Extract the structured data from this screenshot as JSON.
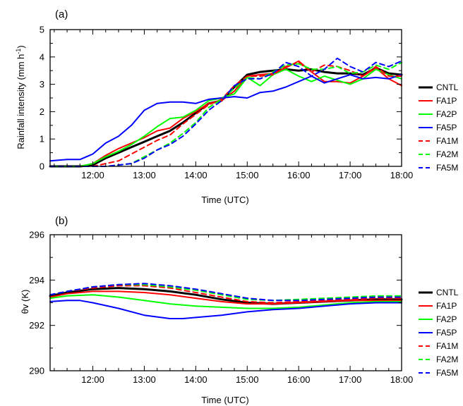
{
  "chart_data": [
    {
      "type": "line",
      "panel_label": "(a)",
      "xlabel": "Time (UTC)",
      "ylabel": "Rainfall intensity (mm h",
      "ylabel_sup": "-1",
      "ylabel_close": ")",
      "xlim": [
        11.17,
        18.0
      ],
      "ylim": [
        0,
        5
      ],
      "xticks": [
        12,
        13,
        14,
        15,
        16,
        17,
        18
      ],
      "xticklabels": [
        "12:00",
        "13:00",
        "14:00",
        "15:00",
        "16:00",
        "17:00",
        "18:00"
      ],
      "yticks": [
        0,
        1,
        2,
        3,
        4,
        5
      ],
      "yticklabels": [
        "0",
        "1",
        "2",
        "3",
        "4",
        "5"
      ],
      "grid": false,
      "legend_position": "right",
      "series": [
        {
          "name": "CNTL",
          "color": "#000000",
          "dash": "solid",
          "width": 3,
          "x": [
            11.17,
            11.5,
            11.75,
            12.0,
            12.25,
            12.5,
            12.75,
            13.0,
            13.25,
            13.5,
            13.75,
            14.0,
            14.25,
            14.5,
            14.75,
            15.0,
            15.25,
            15.5,
            15.75,
            16.0,
            16.25,
            16.5,
            16.75,
            17.0,
            17.25,
            17.5,
            17.75,
            18.0
          ],
          "y": [
            0.0,
            0.0,
            0.0,
            0.05,
            0.3,
            0.5,
            0.7,
            0.9,
            1.1,
            1.3,
            1.6,
            1.95,
            2.3,
            2.4,
            2.9,
            3.35,
            3.45,
            3.5,
            3.55,
            3.5,
            3.55,
            3.45,
            3.4,
            3.4,
            3.35,
            3.6,
            3.4,
            3.35
          ]
        },
        {
          "name": "FA1P",
          "color": "#ff0000",
          "dash": "solid",
          "width": 2,
          "x": [
            11.17,
            11.5,
            11.75,
            12.0,
            12.25,
            12.5,
            12.75,
            13.0,
            13.25,
            13.5,
            13.75,
            14.0,
            14.25,
            14.5,
            14.75,
            15.0,
            15.25,
            15.5,
            15.75,
            16.0,
            16.25,
            16.5,
            16.75,
            17.0,
            17.25,
            17.5,
            17.75,
            18.0
          ],
          "y": [
            0.0,
            0.0,
            0.0,
            0.1,
            0.4,
            0.65,
            0.85,
            1.05,
            1.3,
            1.4,
            1.75,
            2.0,
            2.3,
            2.4,
            2.75,
            3.3,
            3.35,
            3.4,
            3.6,
            3.85,
            3.45,
            3.1,
            3.1,
            3.05,
            3.3,
            3.6,
            3.2,
            2.95
          ]
        },
        {
          "name": "FA2P",
          "color": "#00ff00",
          "dash": "solid",
          "width": 2,
          "x": [
            11.17,
            11.5,
            11.75,
            12.0,
            12.25,
            12.5,
            12.75,
            13.0,
            13.25,
            13.5,
            13.75,
            14.0,
            14.25,
            14.5,
            14.75,
            15.0,
            15.25,
            15.5,
            15.75,
            16.0,
            16.25,
            16.5,
            16.75,
            17.0,
            17.25,
            17.5,
            17.75,
            18.0
          ],
          "y": [
            0.0,
            0.0,
            0.0,
            0.1,
            0.35,
            0.55,
            0.8,
            1.1,
            1.45,
            1.75,
            1.8,
            2.05,
            2.4,
            2.5,
            2.65,
            3.25,
            2.95,
            3.35,
            3.55,
            3.3,
            3.1,
            3.3,
            3.15,
            3.0,
            3.2,
            3.55,
            3.35,
            3.2
          ]
        },
        {
          "name": "FA5P",
          "color": "#0000ff",
          "dash": "solid",
          "width": 2,
          "x": [
            11.17,
            11.5,
            11.75,
            12.0,
            12.25,
            12.5,
            12.75,
            13.0,
            13.25,
            13.5,
            13.75,
            14.0,
            14.25,
            14.5,
            14.75,
            15.0,
            15.25,
            15.5,
            15.75,
            16.0,
            16.25,
            16.5,
            16.75,
            17.0,
            17.25,
            17.5,
            17.75,
            18.0
          ],
          "y": [
            0.2,
            0.25,
            0.25,
            0.45,
            0.85,
            1.1,
            1.5,
            2.05,
            2.3,
            2.35,
            2.35,
            2.3,
            2.45,
            2.5,
            2.55,
            2.5,
            2.7,
            2.75,
            2.9,
            3.1,
            3.3,
            3.05,
            3.2,
            3.35,
            3.2,
            3.25,
            3.2,
            3.35
          ]
        },
        {
          "name": "FA1M",
          "color": "#ff0000",
          "dash": "dashed",
          "width": 2,
          "x": [
            11.17,
            11.5,
            11.75,
            12.0,
            12.25,
            12.5,
            12.75,
            13.0,
            13.25,
            13.5,
            13.75,
            14.0,
            14.25,
            14.5,
            14.75,
            15.0,
            15.25,
            15.5,
            15.75,
            16.0,
            16.25,
            16.5,
            16.75,
            17.0,
            17.25,
            17.5,
            17.75,
            18.0
          ],
          "y": [
            0.0,
            0.0,
            0.0,
            0.0,
            0.1,
            0.2,
            0.45,
            0.7,
            0.95,
            1.15,
            1.55,
            1.9,
            2.25,
            2.45,
            2.95,
            3.3,
            3.3,
            3.35,
            3.65,
            3.8,
            3.45,
            3.7,
            3.65,
            3.5,
            3.3,
            3.65,
            3.3,
            3.3
          ]
        },
        {
          "name": "FA2M",
          "color": "#00ff00",
          "dash": "dashed",
          "width": 2,
          "x": [
            11.17,
            11.5,
            11.75,
            12.0,
            12.25,
            12.5,
            12.75,
            13.0,
            13.25,
            13.5,
            13.75,
            14.0,
            14.25,
            14.5,
            14.75,
            15.0,
            15.25,
            15.5,
            15.75,
            16.0,
            16.25,
            16.5,
            16.75,
            17.0,
            17.25,
            17.5,
            17.75,
            18.0
          ],
          "y": [
            0.0,
            0.0,
            0.0,
            0.0,
            0.0,
            0.05,
            0.1,
            0.35,
            0.6,
            0.85,
            1.2,
            1.6,
            2.15,
            2.45,
            2.85,
            3.25,
            3.2,
            3.45,
            3.7,
            3.75,
            3.55,
            3.55,
            3.65,
            3.4,
            3.45,
            3.7,
            3.55,
            3.8
          ]
        },
        {
          "name": "FA5M",
          "color": "#0000ff",
          "dash": "dashed",
          "width": 2,
          "x": [
            11.17,
            11.5,
            11.75,
            12.0,
            12.25,
            12.5,
            12.75,
            13.0,
            13.25,
            13.5,
            13.75,
            14.0,
            14.25,
            14.5,
            14.75,
            15.0,
            15.25,
            15.5,
            15.75,
            16.0,
            16.25,
            16.5,
            16.75,
            17.0,
            17.25,
            17.5,
            17.75,
            18.0
          ],
          "y": [
            0.0,
            0.0,
            0.0,
            0.0,
            0.0,
            0.05,
            0.1,
            0.3,
            0.6,
            0.8,
            1.1,
            1.55,
            2.05,
            2.4,
            2.95,
            3.2,
            3.2,
            3.4,
            3.8,
            3.65,
            3.3,
            3.55,
            3.95,
            3.65,
            3.45,
            3.8,
            3.65,
            3.85
          ]
        }
      ]
    },
    {
      "type": "line",
      "panel_label": "(b)",
      "xlabel": "Time (UTC)",
      "ylabel": "θv (K)",
      "xlim": [
        11.17,
        18.0
      ],
      "ylim": [
        290,
        296
      ],
      "xticks": [
        12,
        13,
        14,
        15,
        16,
        17,
        18
      ],
      "xticklabels": [
        "12:00",
        "13:00",
        "14:00",
        "15:00",
        "16:00",
        "17:00",
        "18:00"
      ],
      "yticks": [
        290,
        292,
        294,
        296
      ],
      "yticklabels": [
        "290",
        "292",
        "294",
        "296"
      ],
      "grid": false,
      "legend_position": "right",
      "series": [
        {
          "name": "CNTL",
          "color": "#000000",
          "dash": "solid",
          "width": 3,
          "x": [
            11.17,
            11.5,
            12.0,
            12.5,
            13.0,
            13.5,
            14.0,
            14.5,
            15.0,
            15.5,
            16.0,
            16.5,
            17.0,
            17.5,
            18.0
          ],
          "y": [
            293.3,
            293.45,
            293.6,
            293.65,
            293.6,
            293.5,
            293.35,
            293.15,
            293.0,
            292.95,
            293.0,
            293.05,
            293.1,
            293.15,
            293.15
          ]
        },
        {
          "name": "FA1P",
          "color": "#ff0000",
          "dash": "solid",
          "width": 2,
          "x": [
            11.17,
            11.5,
            12.0,
            12.5,
            13.0,
            13.5,
            14.0,
            14.5,
            15.0,
            15.5,
            16.0,
            16.5,
            17.0,
            17.5,
            18.0
          ],
          "y": [
            293.25,
            293.4,
            293.5,
            293.5,
            293.45,
            293.35,
            293.2,
            293.05,
            292.95,
            292.95,
            293.0,
            293.05,
            293.1,
            293.1,
            293.1
          ]
        },
        {
          "name": "FA2P",
          "color": "#00ff00",
          "dash": "solid",
          "width": 2,
          "x": [
            11.17,
            11.5,
            12.0,
            12.5,
            13.0,
            13.5,
            14.0,
            14.5,
            15.0,
            15.5,
            16.0,
            16.5,
            17.0,
            17.5,
            18.0
          ],
          "y": [
            293.2,
            293.3,
            293.35,
            293.25,
            293.1,
            292.95,
            292.85,
            292.8,
            292.75,
            292.75,
            292.8,
            292.9,
            293.0,
            293.05,
            293.05
          ]
        },
        {
          "name": "FA5P",
          "color": "#0000ff",
          "dash": "solid",
          "width": 2,
          "x": [
            11.17,
            11.5,
            11.75,
            12.0,
            12.5,
            13.0,
            13.5,
            13.75,
            14.0,
            14.5,
            15.0,
            15.5,
            16.0,
            16.5,
            17.0,
            17.5,
            18.0
          ],
          "y": [
            293.05,
            293.1,
            293.1,
            293.0,
            292.75,
            292.45,
            292.3,
            292.3,
            292.35,
            292.45,
            292.6,
            292.7,
            292.75,
            292.85,
            292.95,
            293.0,
            293.0
          ]
        },
        {
          "name": "FA1M",
          "color": "#ff0000",
          "dash": "dashed",
          "width": 2,
          "x": [
            11.17,
            11.5,
            12.0,
            12.5,
            13.0,
            13.5,
            14.0,
            14.5,
            15.0,
            15.5,
            16.0,
            16.5,
            17.0,
            17.5,
            18.0
          ],
          "y": [
            293.35,
            293.5,
            293.65,
            293.75,
            293.75,
            293.65,
            293.45,
            293.25,
            293.05,
            293.0,
            293.05,
            293.1,
            293.15,
            293.2,
            293.2
          ]
        },
        {
          "name": "FA2M",
          "color": "#00ff00",
          "dash": "dashed",
          "width": 2,
          "x": [
            11.17,
            11.5,
            12.0,
            12.5,
            13.0,
            13.5,
            14.0,
            14.5,
            15.0,
            15.5,
            16.0,
            16.5,
            17.0,
            17.5,
            18.0
          ],
          "y": [
            293.35,
            293.5,
            293.7,
            293.8,
            293.8,
            293.7,
            293.55,
            293.35,
            293.15,
            293.1,
            293.15,
            293.2,
            293.25,
            293.3,
            293.3
          ]
        },
        {
          "name": "FA5M",
          "color": "#0000ff",
          "dash": "dashed",
          "width": 2,
          "x": [
            11.17,
            11.5,
            12.0,
            12.5,
            13.0,
            13.5,
            14.0,
            14.5,
            15.0,
            15.5,
            16.0,
            16.5,
            17.0,
            17.5,
            18.0
          ],
          "y": [
            293.35,
            293.5,
            293.7,
            293.8,
            293.85,
            293.75,
            293.6,
            293.4,
            293.2,
            293.1,
            293.1,
            293.15,
            293.2,
            293.25,
            293.25
          ]
        }
      ]
    }
  ]
}
